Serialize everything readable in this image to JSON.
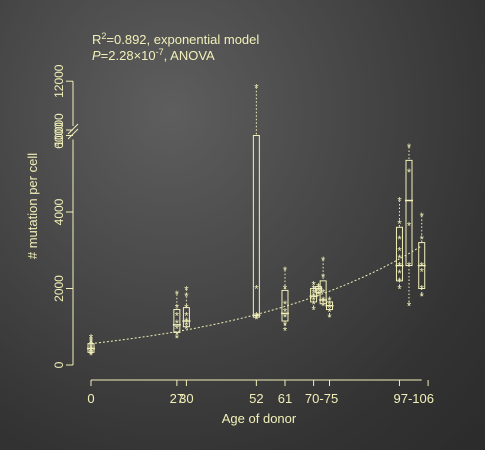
{
  "chart_data": {
    "type": "box",
    "annotations": {
      "line1_prefix": "R",
      "line1_sup": "2",
      "line1_rest": "=0.892, exponential  model",
      "line2_p": "P",
      "line2_mid": "=2.28×10",
      "line2_exp": "-7",
      "line2_rest": ", ANOVA"
    },
    "ylabel": "# mutation per cell",
    "xlabel": "Age of donor",
    "xlim": [
      -5,
      110
    ],
    "ylim_lower": [
      0,
      6000
    ],
    "ylim_upper": [
      10000,
      12000
    ],
    "axis_break": "between 6000 and 10000",
    "yticks_lower": [
      "0",
      "2000",
      "4000",
      "6000"
    ],
    "yticks_upper": [
      "10000",
      "12000"
    ],
    "xtick_labels": [
      {
        "label": "0",
        "x": 0
      },
      {
        "label": "27",
        "x": 27
      },
      {
        "label": "30",
        "x": 30
      },
      {
        "label": "52",
        "x": 52
      },
      {
        "label": "61",
        "x": 61
      },
      {
        "label": "70-75",
        "x": 72.5
      },
      {
        "label": "97-106",
        "x": 101.5
      }
    ],
    "groups": [
      {
        "x": 0,
        "min": 260,
        "q1": 330,
        "median": 430,
        "q3": 560,
        "max": 720,
        "points": [
          260,
          300,
          330,
          380,
          420,
          470,
          530,
          600,
          660,
          720
        ]
      },
      {
        "x": 27,
        "min": 680,
        "q1": 850,
        "median": 1050,
        "q3": 1450,
        "max": 1850,
        "points": [
          700,
          800,
          950,
          1100,
          1300,
          1500,
          1850
        ]
      },
      {
        "x": 30,
        "min": 950,
        "q1": 1000,
        "median": 1150,
        "q3": 1500,
        "max": 1980,
        "points": [
          950,
          1050,
          1150,
          1300,
          1500,
          1800,
          1980
        ]
      },
      {
        "x": 52,
        "min": 1180,
        "q1": 1250,
        "median": 1300,
        "q3": 6000,
        "max": 11750,
        "points": [
          1200,
          1250,
          1300,
          2000,
          11750
        ]
      },
      {
        "x": 61,
        "min": 900,
        "q1": 1150,
        "median": 1350,
        "q3": 1950,
        "max": 2480,
        "points": [
          900,
          1050,
          1250,
          1400,
          1600,
          2000,
          2480
        ]
      },
      {
        "x": 70,
        "min": 1450,
        "q1": 1650,
        "median": 1800,
        "q3": 2000,
        "max": 2150,
        "points": [
          1450,
          1600,
          1700,
          1800,
          1900,
          2000,
          2100
        ]
      },
      {
        "x": 71.5,
        "min": 1800,
        "q1": 1900,
        "median": 2000,
        "q3": 2050,
        "max": 2100,
        "points": [
          1850,
          1950,
          2050
        ]
      },
      {
        "x": 73,
        "min": 1550,
        "q1": 1600,
        "median": 1700,
        "q3": 2200,
        "max": 2750,
        "points": [
          1550,
          1650,
          1700,
          1900,
          2300,
          2750
        ]
      },
      {
        "x": 75,
        "min": 1250,
        "q1": 1450,
        "median": 1550,
        "q3": 1650,
        "max": 1750,
        "points": [
          1250,
          1400,
          1500,
          1600,
          1700
        ]
      },
      {
        "x": 97,
        "min": 2000,
        "q1": 2200,
        "median": 2600,
        "q3": 3600,
        "max": 4300,
        "points": [
          2000,
          2200,
          2400,
          2600,
          2800,
          3000,
          3300,
          3700,
          4300
        ]
      },
      {
        "x": 100,
        "min": 1550,
        "q1": 2600,
        "median": 4300,
        "q3": 5350,
        "max": 5700,
        "points": [
          1550,
          2600,
          3650,
          5050,
          5700
        ]
      },
      {
        "x": 104,
        "min": 1800,
        "q1": 2000,
        "median": 2600,
        "q3": 3200,
        "max": 3900,
        "points": [
          1800,
          2000,
          2450,
          2600,
          3300,
          3900
        ]
      }
    ],
    "fit_curve": {
      "model": "exponential",
      "a": 560,
      "b": 0.0165,
      "x_range": [
        0,
        104
      ]
    },
    "colors": {
      "ink": "#f2f0b8",
      "background": "#3d3d3d"
    }
  }
}
